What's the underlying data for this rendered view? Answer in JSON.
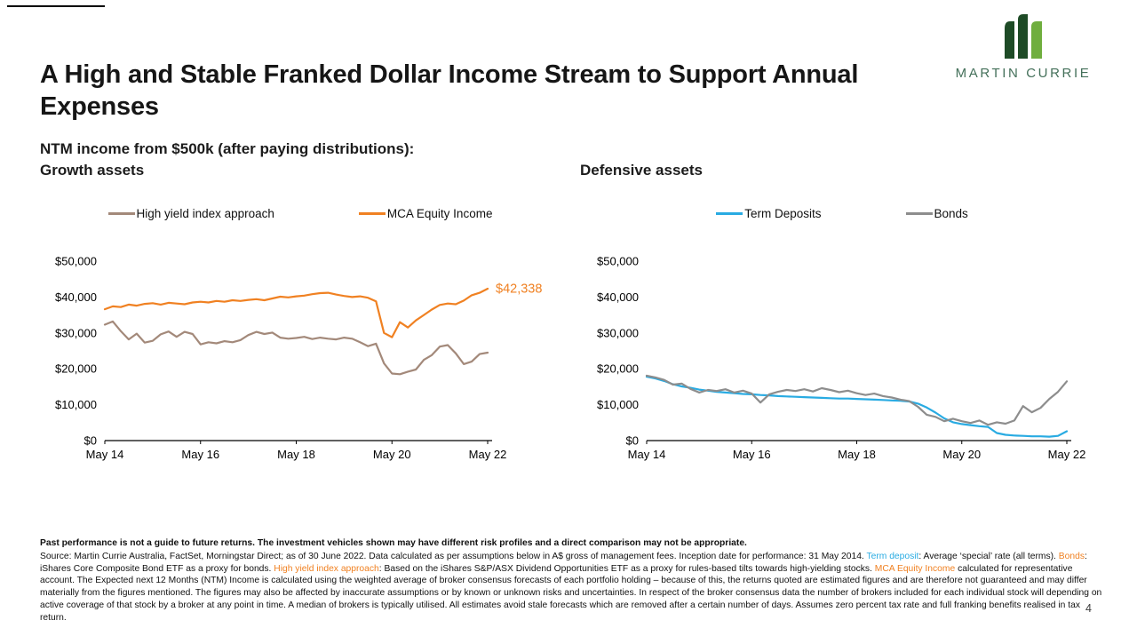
{
  "slide": {
    "title": "A High and Stable Franked Dollar Income Stream to Support Annual Expenses",
    "subtitle": "NTM income from $500k (after paying distributions):",
    "page_number": "4"
  },
  "logo": {
    "wordmark": "MARTIN CURRIE",
    "mark_icon": "martin-currie-bars-icon",
    "dark_green": "#1e4b26",
    "light_green": "#6fae3e",
    "word_color": "#44705a"
  },
  "sections": {
    "growth_heading": "Growth assets",
    "defensive_heading": "Defensive assets"
  },
  "colors": {
    "orange": "#f08122",
    "taupe": "#a3897a",
    "cyan": "#29abe2",
    "gray": "#8d8d8d"
  },
  "chart_data": [
    {
      "type": "line",
      "title": "Growth assets",
      "x_tick_labels": [
        "May 14",
        "May 16",
        "May 18",
        "May 20",
        "May 22"
      ],
      "y_tick_labels": [
        "$0",
        "$10,000",
        "$20,000",
        "$30,000",
        "$40,000",
        "$50,000"
      ],
      "ylim": [
        0,
        50000
      ],
      "grid": false,
      "legend_position": "top",
      "annotation": {
        "text": "$42,338",
        "color": "#f08122",
        "series": "MCA Equity Income"
      },
      "series": [
        {
          "name": "High yield index approach",
          "color": "#a3897a",
          "values": [
            32300,
            33200,
            30500,
            28200,
            29800,
            27300,
            27800,
            29600,
            30400,
            28900,
            30300,
            29700,
            26800,
            27400,
            27100,
            27700,
            27400,
            28000,
            29400,
            30300,
            29700,
            30100,
            28700,
            28400,
            28600,
            28900,
            28300,
            28700,
            28400,
            28200,
            28700,
            28400,
            27400,
            26300,
            27000,
            21500,
            18700,
            18500,
            19200,
            19800,
            22500,
            23800,
            26200,
            26600,
            24300,
            21300,
            22000,
            24100,
            24500
          ]
        },
        {
          "name": "MCA Equity Income",
          "color": "#f08122",
          "values": [
            36600,
            37400,
            37200,
            37900,
            37600,
            38100,
            38300,
            37900,
            38400,
            38200,
            38000,
            38500,
            38700,
            38500,
            38900,
            38700,
            39100,
            38900,
            39200,
            39400,
            39100,
            39600,
            40100,
            39900,
            40200,
            40400,
            40800,
            41100,
            41200,
            40700,
            40300,
            40000,
            40200,
            39800,
            38800,
            30000,
            28800,
            33000,
            31500,
            33500,
            35000,
            36500,
            37800,
            38200,
            38000,
            39000,
            40500,
            41200,
            42338
          ]
        }
      ]
    },
    {
      "type": "line",
      "title": "Defensive assets",
      "x_tick_labels": [
        "May 14",
        "May 16",
        "May 18",
        "May 20",
        "May 22"
      ],
      "y_tick_labels": [
        "$0",
        "$10,000",
        "$20,000",
        "$30,000",
        "$40,000",
        "$50,000"
      ],
      "ylim": [
        0,
        50000
      ],
      "grid": false,
      "legend_position": "top",
      "series": [
        {
          "name": "Term Deposits",
          "color": "#29abe2",
          "values": [
            17800,
            17300,
            16600,
            15700,
            15100,
            14700,
            14200,
            13900,
            13600,
            13400,
            13200,
            13000,
            12900,
            12700,
            12600,
            12400,
            12300,
            12200,
            12100,
            12000,
            11900,
            11800,
            11700,
            11700,
            11600,
            11500,
            11400,
            11300,
            11200,
            11100,
            10900,
            10300,
            9200,
            7800,
            6200,
            5100,
            4600,
            4300,
            4000,
            3800,
            2100,
            1600,
            1400,
            1300,
            1200,
            1200,
            1100,
            1300,
            2600
          ]
        },
        {
          "name": "Bonds",
          "color": "#8d8d8d",
          "values": [
            18100,
            17600,
            16900,
            15600,
            15900,
            14400,
            13400,
            14100,
            13800,
            14300,
            13400,
            13900,
            13100,
            10600,
            12900,
            13600,
            14100,
            13800,
            14300,
            13700,
            14600,
            14100,
            13500,
            13900,
            13200,
            12700,
            13100,
            12400,
            12000,
            11400,
            11000,
            9400,
            7200,
            6600,
            5400,
            6100,
            5400,
            4900,
            5600,
            4400,
            5100,
            4700,
            5600,
            9600,
            7900,
            9100,
            11600,
            13600,
            16500
          ]
        }
      ]
    }
  ],
  "footnote": {
    "segments": [
      {
        "block": true,
        "bold": true,
        "text": "Past performance is not a guide to future returns. The investment vehicles shown may have different risk profiles and a direct comparison may not be appropriate."
      },
      {
        "text": "Source: Martin Currie Australia, FactSet, Morningstar Direct; as of 30 June 2022. Data calculated as per assumptions below in A$ gross of management fees. Inception date for performance: 31 May 2014. "
      },
      {
        "text": "Term deposit",
        "color": "#29abe2"
      },
      {
        "text": ": Average ‘special’ rate (all terms). "
      },
      {
        "text": "Bonds",
        "color": "#f08122"
      },
      {
        "text": ": iShares Core Composite Bond ETF as a proxy for bonds. "
      },
      {
        "text": "High yield index approach",
        "color": "#f08122"
      },
      {
        "text": ": Based on the iShares S&P/ASX Dividend Opportunities ETF as a proxy for rules-based tilts towards high-yielding stocks. "
      },
      {
        "text": "MCA Equity Income",
        "color": "#f08122"
      },
      {
        "text": " calculated for representative account. The Expected next 12 Months (NTM) Income is calculated using the weighted average of broker consensus forecasts of each portfolio holding – because of this, the returns quoted are estimated figures and are therefore not guaranteed and may differ materially from the figures mentioned. The figures may also be affected by inaccurate assumptions or by known or unknown risks and uncertainties. In respect of the broker consensus data the number of brokers included for each individual stock will depending on active coverage of that stock by a broker at any point in time. A median of brokers is typically utilised. All estimates avoid stale forecasts which are removed after a certain number of days. Assumes zero percent tax rate and full franking benefits realised in tax return."
      }
    ]
  }
}
